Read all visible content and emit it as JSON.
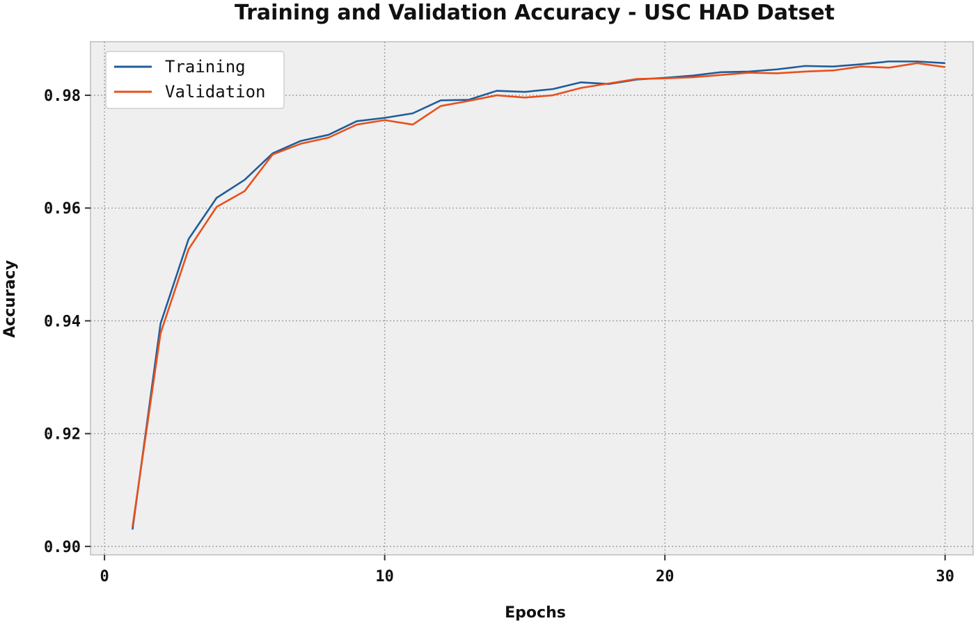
{
  "chart_data": {
    "type": "line",
    "title": "Training and Validation Accuracy - USC HAD Datset",
    "xlabel": "Epochs",
    "ylabel": "Accuracy",
    "xlim": [
      -0.5,
      31
    ],
    "ylim": [
      0.8985,
      0.9895
    ],
    "xticks": [
      0,
      10,
      20,
      30
    ],
    "yticks": [
      0.9,
      0.92,
      0.94,
      0.96,
      0.98
    ],
    "ytick_labels": [
      "0.90",
      "0.92",
      "0.94",
      "0.96",
      "0.98"
    ],
    "grid": true,
    "legend_position": "top-left",
    "background": "#efefef",
    "x": [
      1,
      2,
      3,
      4,
      5,
      6,
      7,
      8,
      9,
      10,
      11,
      12,
      13,
      14,
      15,
      16,
      17,
      18,
      19,
      20,
      21,
      22,
      23,
      24,
      25,
      26,
      27,
      28,
      29,
      30
    ],
    "series": [
      {
        "name": "Training",
        "color": "#1f5d99",
        "values": [
          0.903,
          0.9395,
          0.9545,
          0.9618,
          0.965,
          0.9697,
          0.9719,
          0.973,
          0.9754,
          0.976,
          0.9768,
          0.9791,
          0.9792,
          0.9808,
          0.9806,
          0.9811,
          0.9823,
          0.982,
          0.9828,
          0.9831,
          0.9835,
          0.9841,
          0.9842,
          0.9846,
          0.9852,
          0.9851,
          0.9855,
          0.986,
          0.986,
          0.9857
        ]
      },
      {
        "name": "Validation",
        "color": "#e8501c",
        "values": [
          0.9035,
          0.9378,
          0.9527,
          0.9602,
          0.963,
          0.9695,
          0.9714,
          0.9725,
          0.9748,
          0.9756,
          0.9748,
          0.9781,
          0.979,
          0.98,
          0.9796,
          0.98,
          0.9813,
          0.9821,
          0.9829,
          0.983,
          0.9832,
          0.9836,
          0.984,
          0.9839,
          0.9842,
          0.9844,
          0.9851,
          0.9849,
          0.9857,
          0.985
        ]
      }
    ]
  }
}
